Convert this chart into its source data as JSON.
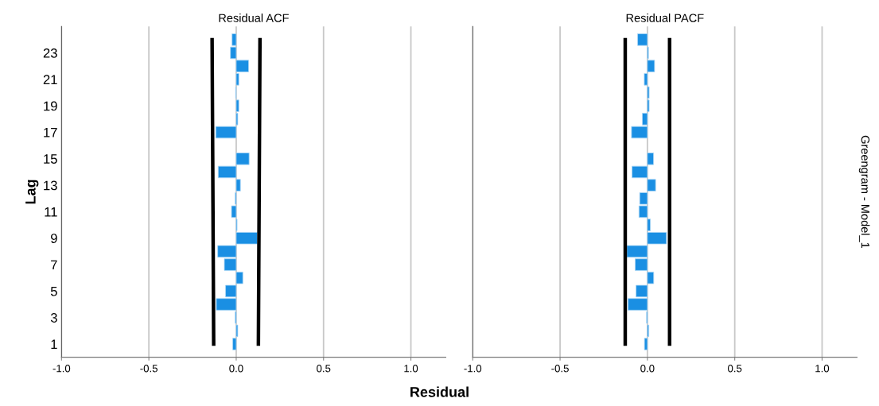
{
  "chart_data": [
    {
      "type": "bar",
      "orientation": "horizontal",
      "title": "Residual ACF",
      "xlabel": "Residual",
      "ylabel": "Lag",
      "categories": [
        null,
        "23",
        null,
        "21",
        null,
        "19",
        null,
        "17",
        null,
        "15",
        null,
        "13",
        null,
        "11",
        null,
        "9",
        null,
        "7",
        null,
        "5",
        null,
        "3",
        null,
        "1"
      ],
      "series": [
        {
          "color": "#1a8fe3",
          "values": [
            -0.024,
            -0.033,
            0.071,
            0.015,
            -0.003,
            0.015,
            0.009,
            -0.117,
            null,
            0.074,
            -0.103,
            0.024,
            -0.006,
            -0.027,
            0.005,
            0.121,
            -0.106,
            -0.068,
            0.038,
            -0.061,
            -0.114,
            -0.006,
            0.009,
            -0.02
          ]
        },
        {
          "type": "line",
          "color": "#000000",
          "values": [
            -0.138,
            null,
            null,
            null,
            null,
            null,
            null,
            null,
            null,
            null,
            null,
            null,
            null,
            null,
            null,
            null,
            null,
            null,
            null,
            null,
            null,
            null,
            null,
            -0.129
          ]
        },
        {
          "type": "line",
          "color": "#000000",
          "values": [
            0.136,
            null,
            null,
            null,
            null,
            null,
            null,
            null,
            null,
            null,
            null,
            null,
            null,
            null,
            null,
            null,
            null,
            null,
            null,
            null,
            null,
            null,
            null,
            0.127
          ]
        }
      ],
      "xlim": [
        -1.0,
        1.2
      ],
      "xticks": [
        {
          "value": -1.0,
          "label": "-1.0"
        },
        {
          "value": -0.5,
          "label": "-0.5"
        },
        {
          "value": 0.0,
          "label": "0.0"
        },
        {
          "value": 0.5,
          "label": "0.5"
        },
        {
          "value": 1.0,
          "label": "1.0"
        }
      ],
      "grid": "x"
    },
    {
      "type": "bar",
      "orientation": "horizontal",
      "title": "Residual PACF",
      "tick_labels": "x",
      "categories": [
        null,
        "23",
        null,
        "21",
        null,
        "19",
        null,
        "17",
        null,
        "15",
        null,
        "13",
        null,
        "11",
        null,
        "9",
        null,
        "7",
        null,
        "5",
        null,
        "3",
        null,
        "1"
      ],
      "series": [
        {
          "color": "#1a8fe3",
          "values": [
            -0.056,
            0.006,
            0.041,
            -0.018,
            0.01,
            0.01,
            -0.029,
            -0.091,
            null,
            0.035,
            -0.088,
            0.047,
            -0.044,
            -0.048,
            0.017,
            0.109,
            -0.118,
            -0.07,
            0.036,
            -0.065,
            -0.111,
            -0.005,
            0.008,
            -0.017
          ]
        },
        {
          "type": "line",
          "color": "#000000",
          "values": [
            -0.127,
            null,
            null,
            null,
            null,
            null,
            null,
            null,
            null,
            null,
            null,
            null,
            null,
            null,
            null,
            null,
            null,
            null,
            null,
            null,
            null,
            null,
            null,
            -0.127
          ]
        },
        {
          "type": "line",
          "color": "#000000",
          "values": [
            0.127,
            null,
            null,
            null,
            null,
            null,
            null,
            null,
            null,
            null,
            null,
            null,
            null,
            null,
            null,
            null,
            null,
            null,
            null,
            null,
            null,
            null,
            null,
            0.127
          ]
        }
      ],
      "xlim": [
        -1.0,
        1.2
      ],
      "xticks": [
        {
          "value": -1.0,
          "label": "-1.0"
        },
        {
          "value": -0.5,
          "label": "-0.5"
        },
        {
          "value": 0.0,
          "label": "0.0"
        },
        {
          "value": 0.5,
          "label": "0.5"
        },
        {
          "value": 1.0,
          "label": "1.0"
        }
      ],
      "grid": "x",
      "annotations": [
        "Greengram - Model_1"
      ]
    }
  ]
}
